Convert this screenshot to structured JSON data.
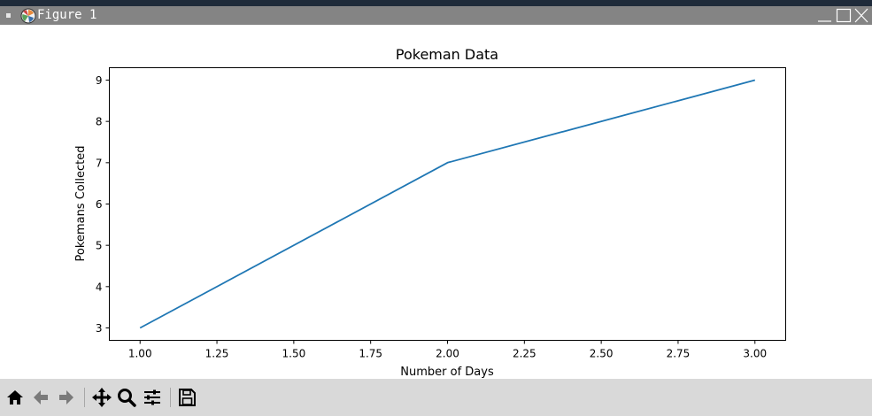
{
  "window": {
    "title": "Figure 1"
  },
  "toolbar": {
    "tools": [
      "home-icon",
      "back-icon",
      "forward-icon",
      "pan-icon",
      "zoom-icon",
      "configure-subplots-icon",
      "save-icon"
    ]
  },
  "colors": {
    "line": "#1f77b4",
    "titlebar": "#848484",
    "toolbar": "#d9d9d9"
  },
  "chart_data": {
    "type": "line",
    "title": "Pokeman Data",
    "xlabel": "Number of Days",
    "ylabel": "Pokemans Collected",
    "x": [
      1,
      2,
      3
    ],
    "series": [
      {
        "values": [
          3,
          7,
          9
        ]
      }
    ],
    "xlim": [
      0.9,
      3.1
    ],
    "ylim": [
      2.7,
      9.3
    ],
    "xticks": [
      "1.00",
      "1.25",
      "1.50",
      "1.75",
      "2.00",
      "2.25",
      "2.50",
      "2.75",
      "3.00"
    ],
    "yticks": [
      "3",
      "4",
      "5",
      "6",
      "7",
      "8",
      "9"
    ],
    "grid": false,
    "legend": false
  }
}
